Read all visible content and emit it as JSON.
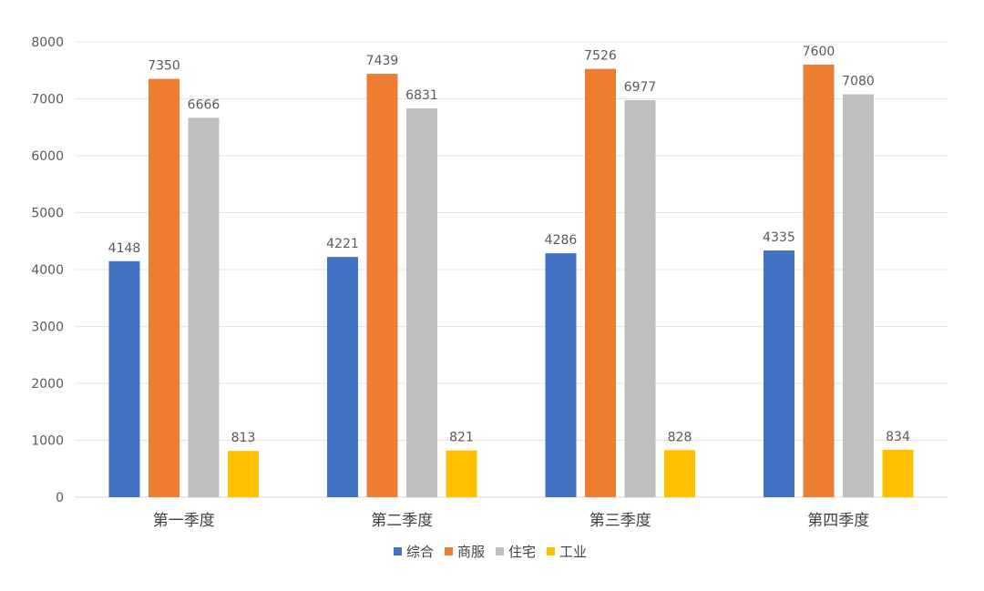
{
  "chart_data": {
    "type": "bar",
    "categories": [
      "第一季度",
      "第二季度",
      "第三季度",
      "第四季度"
    ],
    "series": [
      {
        "name": "综合",
        "color": "#4472C4",
        "values": [
          4148,
          4221,
          4286,
          4335
        ]
      },
      {
        "name": "商服",
        "color": "#ED7D31",
        "values": [
          7350,
          7439,
          7526,
          7600
        ]
      },
      {
        "name": "住宅",
        "color": "#BFBFBF",
        "values": [
          6666,
          6831,
          6977,
          7080
        ]
      },
      {
        "name": "工业",
        "color": "#FFC000",
        "values": [
          813,
          821,
          828,
          834
        ]
      }
    ],
    "yticks": [
      "0",
      "1000",
      "2000",
      "3000",
      "4000",
      "5000",
      "6000",
      "7000",
      "8000"
    ],
    "ylim": [
      0,
      8000
    ],
    "grid": true,
    "legend_position": "bottom-center",
    "title": "",
    "xlabel": "",
    "ylabel": ""
  }
}
